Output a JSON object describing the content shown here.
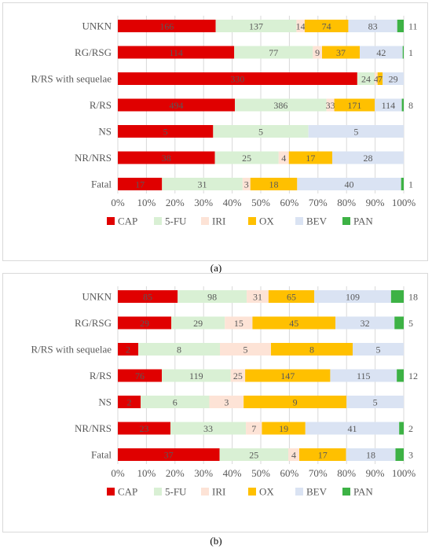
{
  "colors": {
    "CAP": "#e00000",
    "5-FU": "#d9f0d4",
    "IRI": "#fde3d6",
    "OX": "#ffc000",
    "BEV": "#dae3f3",
    "PAN": "#3db245",
    "grid": "#d9d9d9",
    "text": "#595959"
  },
  "chart_data": [
    {
      "type": "bar",
      "orientation": "horizontal",
      "stacked": "percent",
      "panel_label": "(a)",
      "categories": [
        "UNKN",
        "RG/RSG",
        "R/RS with sequelae",
        "R/RS",
        "NS",
        "NR/NRS",
        "Fatal"
      ],
      "series": [
        {
          "name": "CAP",
          "values": [
            166,
            114,
            330,
            494,
            5,
            38,
            17
          ]
        },
        {
          "name": "5-FU",
          "values": [
            137,
            77,
            24,
            386,
            5,
            25,
            31
          ]
        },
        {
          "name": "IRI",
          "values": [
            14,
            9,
            4,
            33,
            0,
            4,
            3
          ]
        },
        {
          "name": "OX",
          "values": [
            74,
            37,
            7,
            171,
            0,
            17,
            18
          ]
        },
        {
          "name": "BEV",
          "values": [
            83,
            42,
            29,
            114,
            5,
            28,
            40
          ]
        },
        {
          "name": "PAN",
          "values": [
            11,
            1,
            0,
            8,
            0,
            0,
            1
          ]
        }
      ],
      "xlim": [
        0,
        100
      ],
      "xticks": [
        "0%",
        "10%",
        "20%",
        "30%",
        "40%",
        "50%",
        "60%",
        "70%",
        "80%",
        "90%",
        "100%"
      ],
      "grid": true,
      "legend_position": "bottom"
    },
    {
      "type": "bar",
      "orientation": "horizontal",
      "stacked": "percent",
      "panel_label": "(b)",
      "categories": [
        "UNKN",
        "RG/RSG",
        "R/RS with sequelae",
        "R/RS",
        "NS",
        "NR/NRS",
        "Fatal"
      ],
      "series": [
        {
          "name": "CAP",
          "values": [
            85,
            29,
            2,
            76,
            2,
            23,
            37
          ]
        },
        {
          "name": "5-FU",
          "values": [
            98,
            29,
            8,
            119,
            6,
            33,
            25
          ]
        },
        {
          "name": "IRI",
          "values": [
            31,
            15,
            5,
            25,
            3,
            7,
            4
          ]
        },
        {
          "name": "OX",
          "values": [
            65,
            45,
            8,
            147,
            9,
            19,
            17
          ]
        },
        {
          "name": "BEV",
          "values": [
            109,
            32,
            5,
            115,
            5,
            41,
            18
          ]
        },
        {
          "name": "PAN",
          "values": [
            18,
            5,
            0,
            12,
            0,
            2,
            3
          ]
        }
      ],
      "xlim": [
        0,
        100
      ],
      "xticks": [
        "0%",
        "10%",
        "20%",
        "30%",
        "40%",
        "50%",
        "60%",
        "70%",
        "80%",
        "90%",
        "100%"
      ],
      "grid": true,
      "legend_position": "bottom"
    }
  ]
}
